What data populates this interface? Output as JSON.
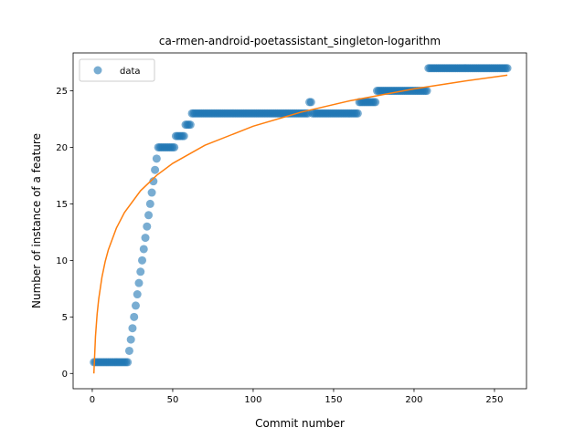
{
  "chart_data": {
    "type": "scatter",
    "title": "ca-rmen-android-poetassistant_singleton-logarithm",
    "xlabel": "Commit number",
    "ylabel": "Number of instance of a feature",
    "xlim": [
      -11.9,
      269.9
    ],
    "ylim": [
      -1.35,
      28.35
    ],
    "xticks": [
      0,
      50,
      100,
      150,
      200,
      250
    ],
    "yticks": [
      0,
      5,
      10,
      15,
      20,
      25
    ],
    "grid": false,
    "legend": "upper left",
    "series": [
      {
        "name": "data",
        "color": "#1f77b4",
        "kind": "scatter",
        "x": [
          1,
          2,
          3,
          4,
          5,
          6,
          7,
          8,
          9,
          10,
          11,
          12,
          13,
          14,
          15,
          16,
          17,
          18,
          19,
          20,
          21,
          22,
          23,
          24,
          25,
          26,
          27,
          28,
          29,
          30,
          31,
          32,
          33,
          34,
          35,
          36,
          37,
          38,
          39,
          40,
          41,
          42,
          43,
          44,
          45,
          46,
          47,
          48,
          49,
          50,
          51,
          52,
          53,
          54,
          55,
          56,
          57,
          58,
          59,
          60,
          61,
          62,
          63,
          64,
          65,
          66,
          67,
          68,
          69,
          70,
          71,
          72,
          73,
          74,
          75,
          76,
          77,
          78,
          79,
          80,
          81,
          82,
          83,
          84,
          85,
          86,
          87,
          88,
          89,
          90,
          91,
          92,
          93,
          94,
          95,
          96,
          97,
          98,
          99,
          100,
          101,
          102,
          103,
          104,
          105,
          106,
          107,
          108,
          109,
          110,
          111,
          112,
          113,
          114,
          115,
          116,
          117,
          118,
          119,
          120,
          121,
          122,
          123,
          124,
          125,
          126,
          127,
          128,
          129,
          130,
          131,
          132,
          133,
          134,
          135,
          136,
          137,
          138,
          139,
          140,
          141,
          142,
          143,
          144,
          145,
          146,
          147,
          148,
          149,
          150,
          151,
          152,
          153,
          154,
          155,
          156,
          157,
          158,
          159,
          160,
          161,
          162,
          163,
          164,
          165,
          166,
          167,
          168,
          169,
          170,
          171,
          172,
          173,
          174,
          175,
          176,
          177,
          178,
          179,
          180,
          181,
          182,
          183,
          184,
          185,
          186,
          187,
          188,
          189,
          190,
          191,
          192,
          193,
          194,
          195,
          196,
          197,
          198,
          199,
          200,
          201,
          202,
          203,
          204,
          205,
          206,
          207,
          208,
          209,
          210,
          211,
          212,
          213,
          214,
          215,
          216,
          217,
          218,
          219,
          220,
          221,
          222,
          223,
          224,
          225,
          226,
          227,
          228,
          229,
          230,
          231,
          232,
          233,
          234,
          235,
          236,
          237,
          238,
          239,
          240,
          241,
          242,
          243,
          244,
          245,
          246,
          247,
          248,
          249,
          250,
          251,
          252,
          253,
          254,
          255,
          256,
          257,
          258
        ],
        "values": [
          1,
          1,
          1,
          1,
          1,
          1,
          1,
          1,
          1,
          1,
          1,
          1,
          1,
          1,
          1,
          1,
          1,
          1,
          1,
          1,
          1,
          1,
          2,
          3,
          4,
          5,
          6,
          7,
          8,
          9,
          10,
          11,
          12,
          13,
          14,
          15,
          16,
          17,
          18,
          19,
          20,
          20,
          20,
          20,
          20,
          20,
          20,
          20,
          20,
          20,
          20,
          21,
          21,
          21,
          21,
          21,
          21,
          22,
          22,
          22,
          22,
          23,
          23,
          23,
          23,
          23,
          23,
          23,
          23,
          23,
          23,
          23,
          23,
          23,
          23,
          23,
          23,
          23,
          23,
          23,
          23,
          23,
          23,
          23,
          23,
          23,
          23,
          23,
          23,
          23,
          23,
          23,
          23,
          23,
          23,
          23,
          23,
          23,
          23,
          23,
          23,
          23,
          23,
          23,
          23,
          23,
          23,
          23,
          23,
          23,
          23,
          23,
          23,
          23,
          23,
          23,
          23,
          23,
          23,
          23,
          23,
          23,
          23,
          23,
          23,
          23,
          23,
          23,
          23,
          23,
          23,
          23,
          23,
          23,
          24,
          24,
          23,
          23,
          23,
          23,
          23,
          23,
          23,
          23,
          23,
          23,
          23,
          23,
          23,
          23,
          23,
          23,
          23,
          23,
          23,
          23,
          23,
          23,
          23,
          23,
          23,
          23,
          23,
          23,
          23,
          24,
          24,
          24,
          24,
          24,
          24,
          24,
          24,
          24,
          24,
          24,
          25,
          25,
          25,
          25,
          25,
          25,
          25,
          25,
          25,
          25,
          25,
          25,
          25,
          25,
          25,
          25,
          25,
          25,
          25,
          25,
          25,
          25,
          25,
          25,
          25,
          25,
          25,
          25,
          25,
          25,
          25,
          25,
          27,
          27,
          27,
          27,
          27,
          27,
          27,
          27,
          27,
          27,
          27,
          27,
          27,
          27,
          27,
          27,
          27,
          27,
          27,
          27,
          27,
          27,
          27,
          27,
          27,
          27,
          27,
          27,
          27,
          27,
          27,
          27,
          27,
          27,
          27,
          27,
          27,
          27,
          27,
          27,
          27,
          27,
          27,
          27,
          27,
          27,
          27,
          27,
          27,
          27
        ]
      },
      {
        "color": "#ff7f0e",
        "kind": "line",
        "x": [
          1,
          2,
          3,
          4,
          6,
          8,
          10,
          15,
          20,
          30,
          40,
          50,
          70,
          100,
          130,
          160,
          200,
          230,
          258
        ],
        "values": [
          0,
          3.29,
          5.22,
          6.58,
          8.51,
          9.88,
          10.94,
          12.86,
          14.23,
          16.16,
          17.52,
          18.58,
          20.18,
          21.87,
          23.12,
          24.11,
          25.17,
          25.83,
          26.38
        ]
      }
    ]
  }
}
